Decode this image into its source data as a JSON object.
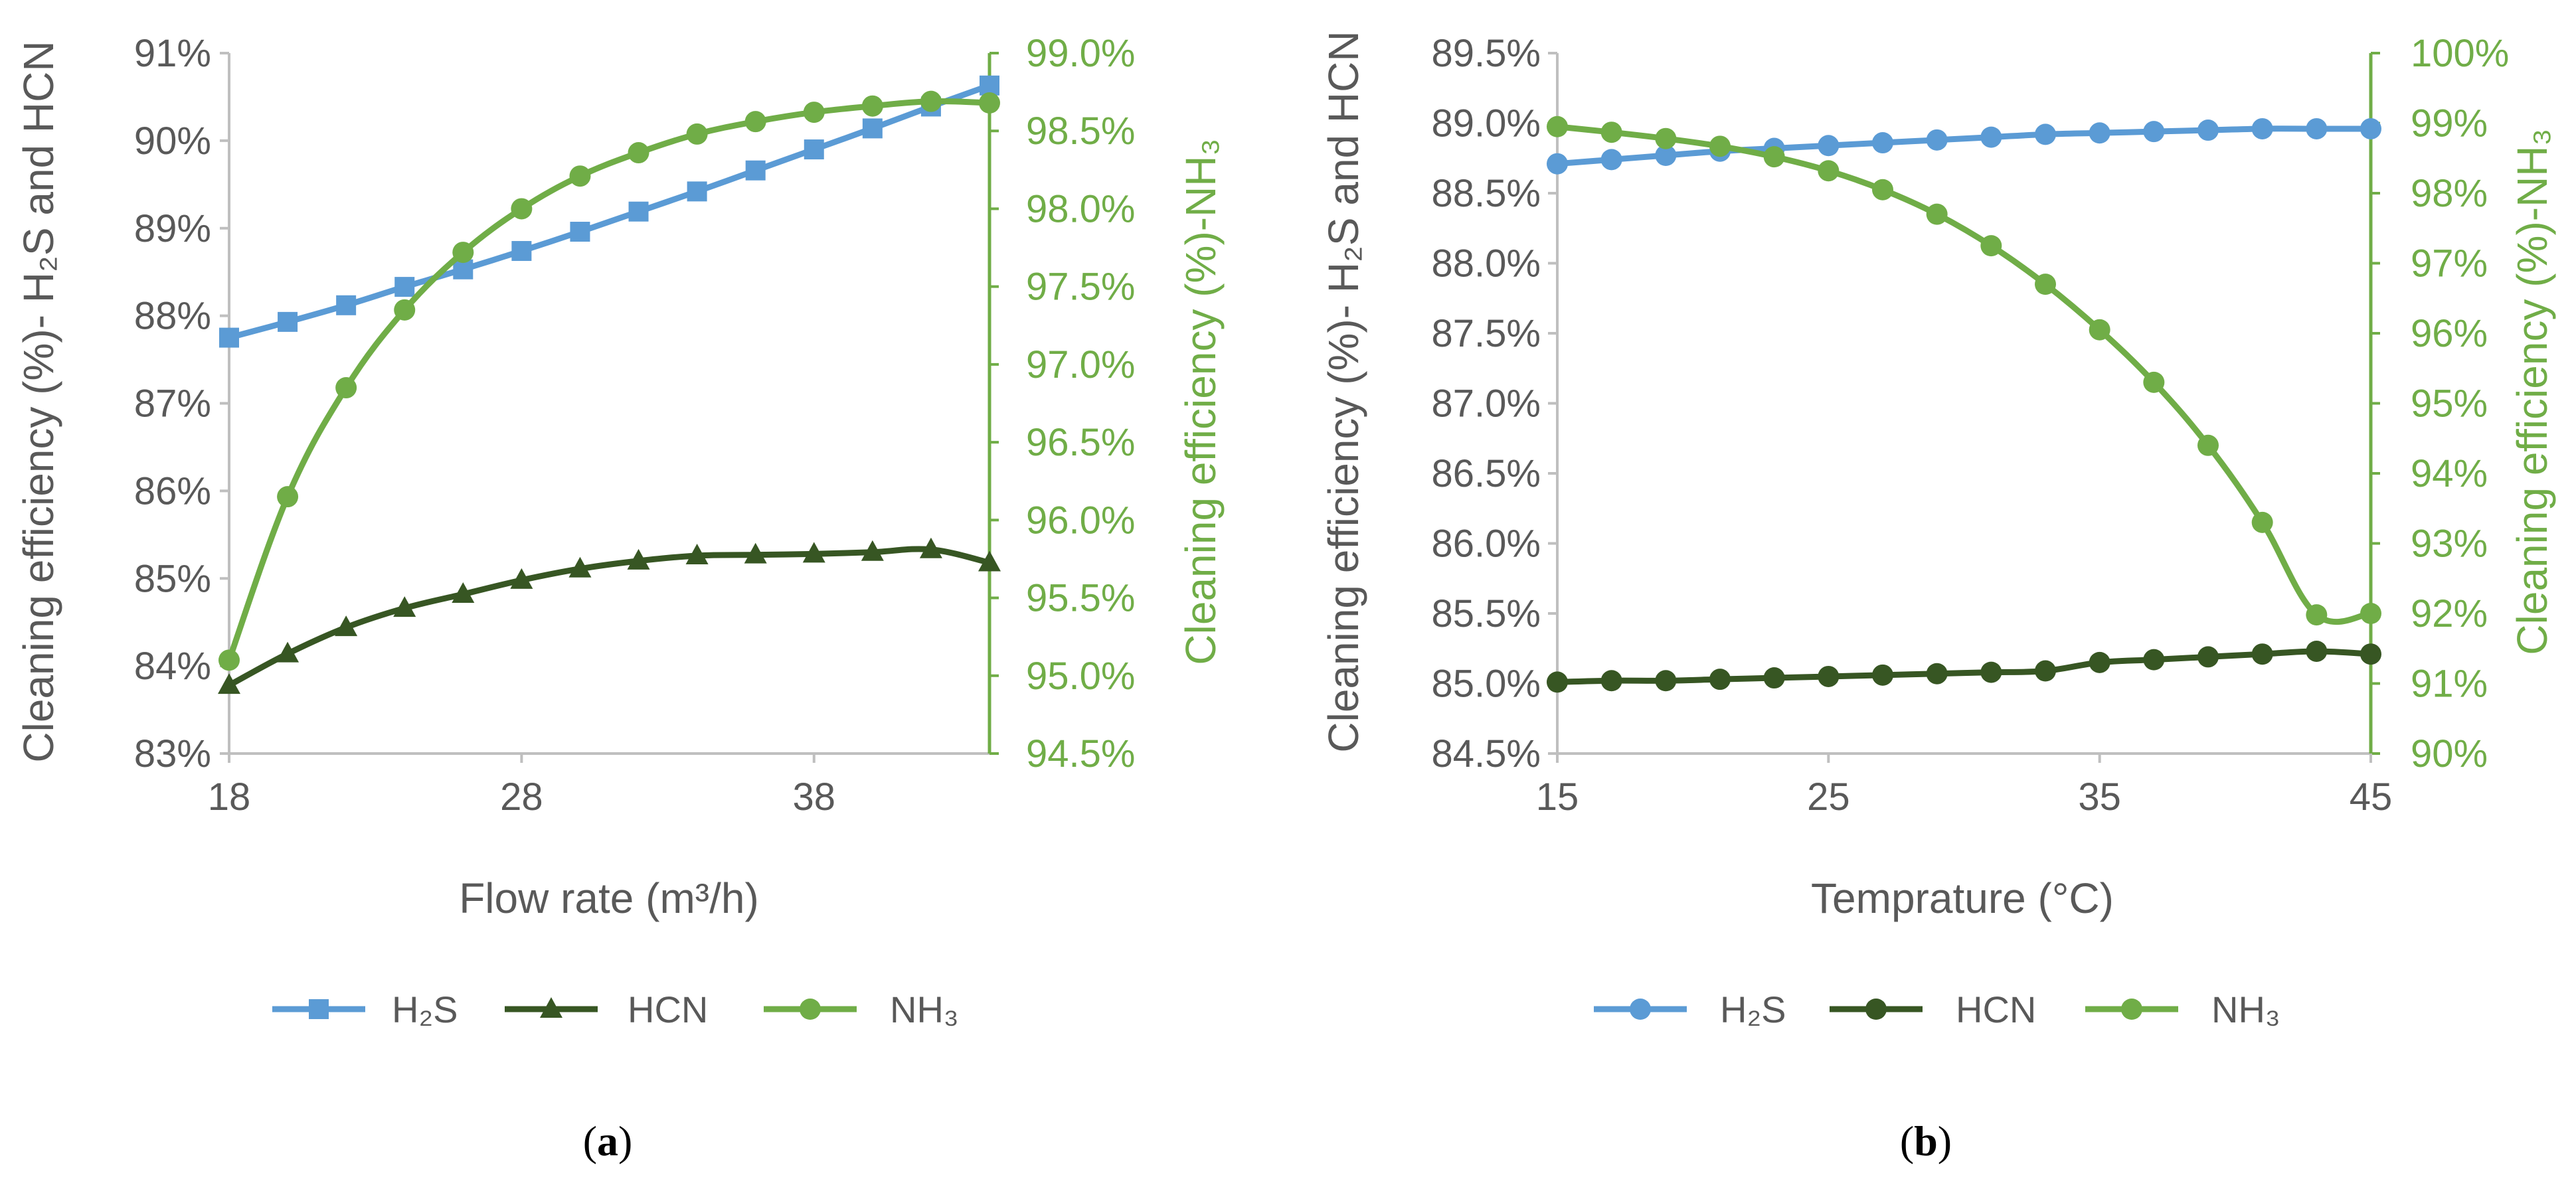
{
  "colors": {
    "h2s": "#5B9BD5",
    "hcn": "#375623",
    "nh3": "#70AD47",
    "axis": "#BFBFBF",
    "tick_text": "#595959"
  },
  "chart_data": [
    {
      "id": "a",
      "type": "line",
      "panel_label": "a",
      "xlabel": "Flow rate (m³/h)",
      "ylabel_left": "Cleaning efficiency (%)- H₂S and HCN",
      "ylabel_right": "Cleaning efficiency (%)-NH₃",
      "x_ticks": [
        "18",
        "28",
        "38"
      ],
      "xlim": [
        18,
        44
      ],
      "ylim_left": [
        83,
        91
      ],
      "ylim_right": [
        94.5,
        99.0
      ],
      "y_ticks_left": [
        "83%",
        "84%",
        "85%",
        "86%",
        "87%",
        "88%",
        "89%",
        "90%",
        "91%"
      ],
      "y_ticks_right": [
        "94.5%",
        "95.0%",
        "95.5%",
        "96.0%",
        "96.5%",
        "97.0%",
        "97.5%",
        "98.0%",
        "98.5%",
        "99.0%"
      ],
      "x": [
        18,
        20,
        22,
        24,
        26,
        28,
        30,
        32,
        34,
        36,
        38,
        40,
        42,
        44
      ],
      "series": [
        {
          "name": "H₂S",
          "axis": "left",
          "marker": "square",
          "color_key": "h2s",
          "values": [
            87.75,
            87.93,
            88.12,
            88.33,
            88.53,
            88.74,
            88.96,
            89.19,
            89.42,
            89.66,
            89.9,
            90.14,
            90.39,
            90.63
          ]
        },
        {
          "name": "HCN",
          "axis": "left",
          "marker": "triangle",
          "color_key": "hcn",
          "values": [
            83.78,
            84.14,
            84.44,
            84.66,
            84.82,
            84.98,
            85.11,
            85.2,
            85.26,
            85.27,
            85.28,
            85.3,
            85.33,
            85.18
          ]
        },
        {
          "name": "NH₃",
          "axis": "right",
          "marker": "circle",
          "color_key": "nh3",
          "values": [
            95.1,
            96.15,
            96.85,
            97.35,
            97.72,
            98.0,
            98.21,
            98.36,
            98.48,
            98.56,
            98.62,
            98.66,
            98.69,
            98.68
          ]
        }
      ]
    },
    {
      "id": "b",
      "type": "line",
      "panel_label": "b",
      "xlabel": "Temprature (°C)",
      "ylabel_left": "Cleaning efficiency (%)- H₂S and HCN",
      "ylabel_right": "Cleaning efficiency (%)-NH₃",
      "x_ticks": [
        "15",
        "25",
        "35",
        "45"
      ],
      "xlim": [
        15,
        45
      ],
      "ylim_left": [
        84.5,
        89.5
      ],
      "ylim_right": [
        90,
        100
      ],
      "y_ticks_left": [
        "84.5%",
        "85.0%",
        "85.5%",
        "86.0%",
        "86.5%",
        "87.0%",
        "87.5%",
        "88.0%",
        "88.5%",
        "89.0%",
        "89.5%"
      ],
      "y_ticks_right": [
        "90%",
        "91%",
        "92%",
        "93%",
        "94%",
        "95%",
        "96%",
        "97%",
        "98%",
        "99%",
        "100%"
      ],
      "x": [
        15,
        17,
        19,
        21,
        23,
        25,
        27,
        29,
        31,
        33,
        35,
        37,
        39,
        41,
        43,
        45
      ],
      "series": [
        {
          "name": "H₂S",
          "axis": "left",
          "marker": "circle",
          "color_key": "h2s",
          "values": [
            88.71,
            88.74,
            88.77,
            88.8,
            88.82,
            88.84,
            88.86,
            88.88,
            88.9,
            88.92,
            88.93,
            88.94,
            88.95,
            88.96,
            88.96,
            88.96
          ]
        },
        {
          "name": "HCN",
          "axis": "left",
          "marker": "circle",
          "color_key": "hcn",
          "values": [
            85.01,
            85.02,
            85.02,
            85.03,
            85.04,
            85.05,
            85.06,
            85.07,
            85.08,
            85.09,
            85.15,
            85.17,
            85.19,
            85.21,
            85.23,
            85.21
          ]
        },
        {
          "name": "NH₃",
          "axis": "right",
          "marker": "circle",
          "color_key": "nh3",
          "values": [
            98.95,
            98.87,
            98.78,
            98.67,
            98.52,
            98.32,
            98.05,
            97.7,
            97.25,
            96.7,
            96.05,
            95.3,
            94.4,
            93.3,
            91.98,
            92.0
          ]
        }
      ]
    }
  ]
}
